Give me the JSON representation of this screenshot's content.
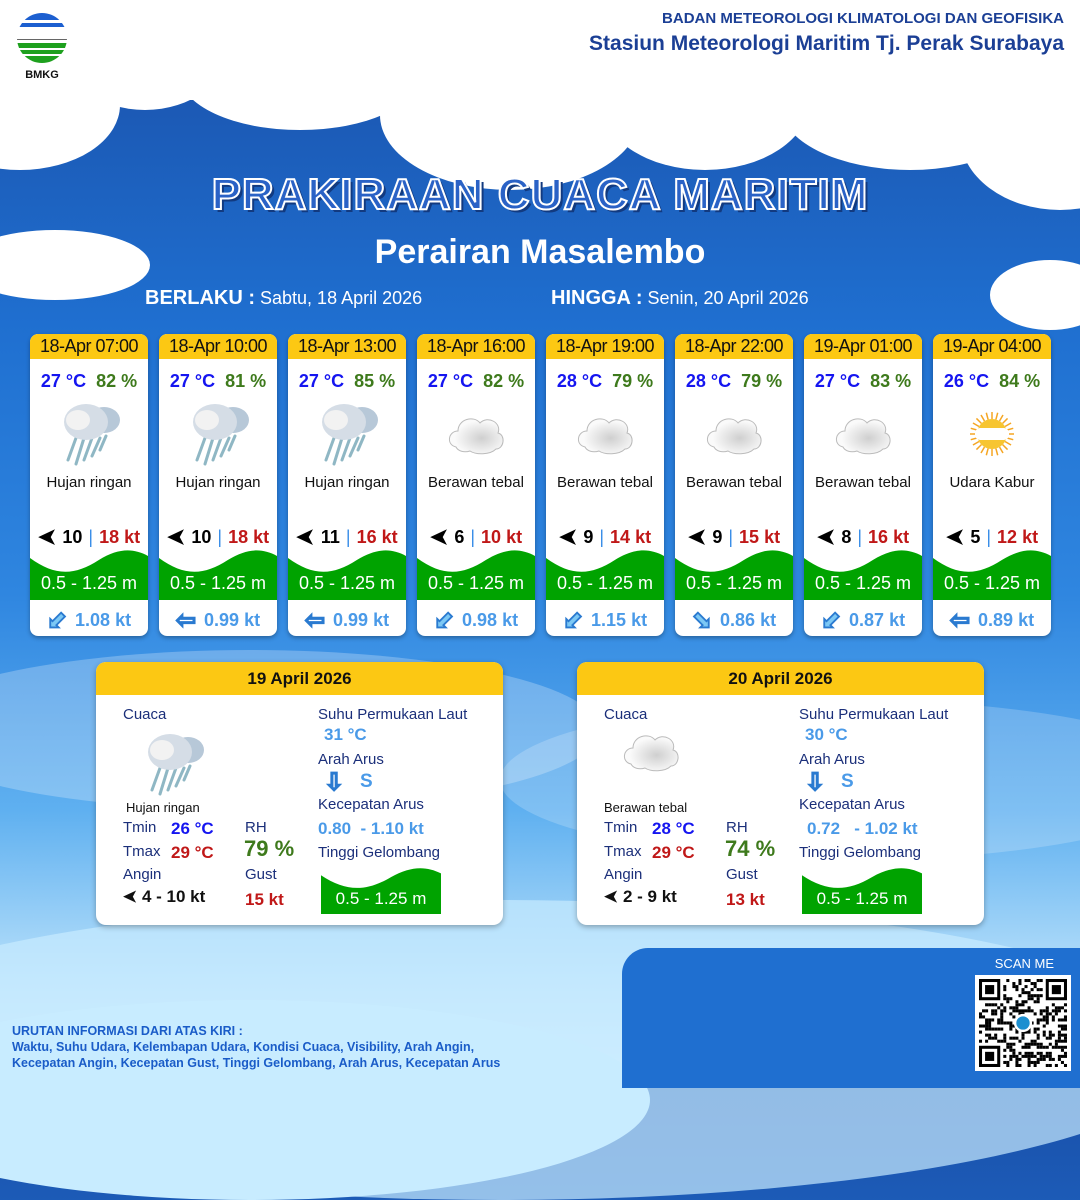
{
  "header": {
    "organization": "BADAN METEOROLOGI KLIMATOLOGI DAN GEOFISIKA",
    "station": "Stasiun Meteorologi Maritim Tj. Perak Surabaya",
    "logo_text": "BMKG"
  },
  "title": "PRAKIRAAN CUACA MARITIM",
  "subtitle": "Perairan Masalembo",
  "validity": {
    "from_label": "BERLAKU :",
    "from_value": "Sabtu, 18 April 2026",
    "to_label": "HINGGA :",
    "to_value": "Senin, 20 April 2026"
  },
  "colors": {
    "temp": "#1515f0",
    "humidity": "#3e7a1c",
    "gust": "#c01818",
    "wave": "#00a300",
    "header": "#fcc813",
    "current": "#4a9ae8"
  },
  "forecasts": [
    {
      "time": "18-Apr 07:00",
      "temp": "27 °C",
      "rh": "82 %",
      "icon": "cloud-rain-icon",
      "weather": "Hujan ringan",
      "wind_dir_icon": "wind-arrow-west-icon",
      "wind": "10",
      "gust": "18 kt",
      "wave": "0.5 - 1.25 m",
      "current_dir_icon": "arrow-southwest-icon",
      "current": "1.08 kt"
    },
    {
      "time": "18-Apr 10:00",
      "temp": "27 °C",
      "rh": "81 %",
      "icon": "cloud-rain-icon",
      "weather": "Hujan ringan",
      "wind_dir_icon": "wind-arrow-west-icon",
      "wind": "10",
      "gust": "18 kt",
      "wave": "0.5 - 1.25 m",
      "current_dir_icon": "arrow-west-icon",
      "current": "0.99 kt"
    },
    {
      "time": "18-Apr 13:00",
      "temp": "27 °C",
      "rh": "85 %",
      "icon": "cloud-rain-icon",
      "weather": "Hujan ringan",
      "wind_dir_icon": "wind-arrow-west-icon",
      "wind": "11",
      "gust": "16 kt",
      "wave": "0.5 - 1.25 m",
      "current_dir_icon": "arrow-west-icon",
      "current": "0.99 kt"
    },
    {
      "time": "18-Apr 16:00",
      "temp": "27 °C",
      "rh": "82 %",
      "icon": "cloud-icon",
      "weather": "Berawan tebal",
      "wind_dir_icon": "wind-arrow-west-icon",
      "wind": "6",
      "gust": "10 kt",
      "wave": "0.5 - 1.25 m",
      "current_dir_icon": "arrow-southwest-icon",
      "current": "0.98 kt"
    },
    {
      "time": "18-Apr 19:00",
      "temp": "28 °C",
      "rh": "79 %",
      "icon": "cloud-icon",
      "weather": "Berawan tebal",
      "wind_dir_icon": "wind-arrow-west-icon",
      "wind": "9",
      "gust": "14 kt",
      "wave": "0.5 - 1.25 m",
      "current_dir_icon": "arrow-southwest-icon",
      "current": "1.15 kt"
    },
    {
      "time": "18-Apr 22:00",
      "temp": "28 °C",
      "rh": "79 %",
      "icon": "cloud-icon",
      "weather": "Berawan tebal",
      "wind_dir_icon": "wind-arrow-west-icon",
      "wind": "9",
      "gust": "15 kt",
      "wave": "0.5 - 1.25 m",
      "current_dir_icon": "arrow-southeast-icon",
      "current": "0.86 kt"
    },
    {
      "time": "19-Apr 01:00",
      "temp": "27 °C",
      "rh": "83 %",
      "icon": "cloud-icon",
      "weather": "Berawan tebal",
      "wind_dir_icon": "wind-arrow-west-icon",
      "wind": "8",
      "gust": "16 kt",
      "wave": "0.5 - 1.25 m",
      "current_dir_icon": "arrow-southwest-icon",
      "current": "0.87 kt"
    },
    {
      "time": "19-Apr 04:00",
      "temp": "26 °C",
      "rh": "84 %",
      "icon": "haze-sun-icon",
      "weather": "Udara Kabur",
      "wind_dir_icon": "wind-arrow-west-icon",
      "wind": "5",
      "gust": "12 kt",
      "wave": "0.5 - 1.25 m",
      "current_dir_icon": "arrow-west-icon",
      "current": "0.89 kt"
    }
  ],
  "daily": [
    {
      "date": "19 April 2026",
      "weather_label": "Cuaca",
      "icon": "cloud-rain-icon",
      "weather": "Hujan ringan",
      "tmin_label": "Tmin",
      "tmin": "26 °C",
      "tmax_label": "Tmax",
      "tmax": "29 °C",
      "rh_label": "RH",
      "rh": "79 %",
      "wind_label": "Angin",
      "wind": "4  - 10 kt",
      "gust_label": "Gust",
      "gust": "15 kt",
      "sst_label": "Suhu Permukaan Laut",
      "sst": "31 °C",
      "current_dir_label": "Arah Arus",
      "current_dir_icon": "arrow-south-icon",
      "current_dir": "S",
      "current_speed_label": "Kecepatan Arus",
      "current_speed": "0.80  - 1.10 kt",
      "wave_label": "Tinggi Gelombang",
      "wave": "0.5 - 1.25 m"
    },
    {
      "date": "20 April 2026",
      "weather_label": "Cuaca",
      "icon": "cloud-icon",
      "weather": "Berawan tebal",
      "tmin_label": "Tmin",
      "tmin": "28 °C",
      "tmax_label": "Tmax",
      "tmax": "29 °C",
      "rh_label": "RH",
      "rh": "74 %",
      "wind_label": "Angin",
      "wind": "2  - 9 kt",
      "gust_label": "Gust",
      "gust": "13 kt",
      "sst_label": "Suhu Permukaan Laut",
      "sst": "30 °C",
      "current_dir_label": "Arah Arus",
      "current_dir_icon": "arrow-south-icon",
      "current_dir": "S",
      "current_speed_label": "Kecepatan Arus",
      "current_speed": "0.72   - 1.02 kt",
      "wave_label": "Tinggi Gelombang",
      "wave": "0.5 - 1.25 m"
    }
  ],
  "scan_label": "SCAN ME",
  "legend": {
    "title": "URUTAN INFORMASI DARI ATAS KIRI :",
    "line1": "Waktu, Suhu Udara, Kelembapan Udara, Kondisi Cuaca, Visibility, Arah Angin,",
    "line2": "Kecepatan Angin, Kecepatan Gust, Tinggi Gelombang, Arah Arus, Kecepatan Arus"
  }
}
